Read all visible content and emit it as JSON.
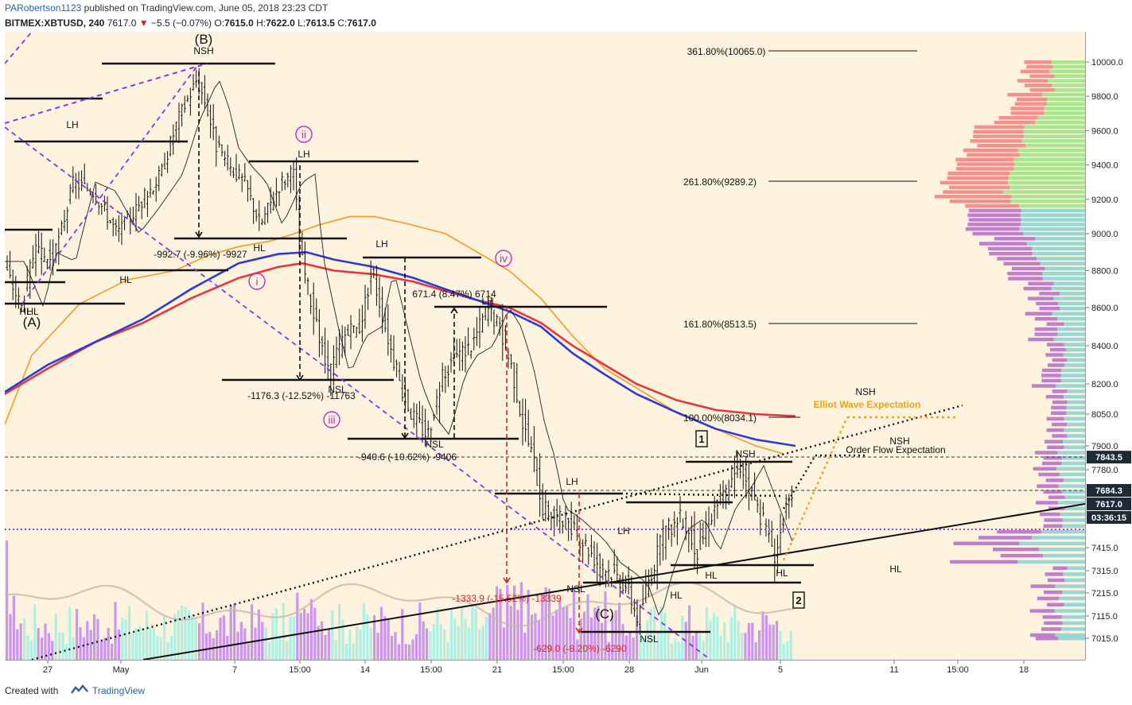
{
  "header": {
    "author": "PARobertson1123",
    "published": "published on TradingView.com, June 05, 2018 23:23 CDT",
    "symbol": "BITMEX:XBTUSD, 240",
    "last": "7617.0",
    "change": "−5.5 (−0.07%)",
    "ohlc": [
      {
        "k": "O:",
        "v": "7615.0"
      },
      {
        "k": "H:",
        "v": "7622.0"
      },
      {
        "k": "L:",
        "v": "7613.5"
      },
      {
        "k": "C:",
        "v": "7617.0"
      }
    ]
  },
  "footer": {
    "created": "Created with",
    "brand": "TradingView"
  },
  "colors": {
    "background": "#fdf3df",
    "volume_up": "#a7efe4",
    "volume_down": "#c48cf0",
    "ma_blue": "#2b3ad8",
    "ma_red": "#e8353a",
    "ma_orange": "#f59a1f",
    "profile_green": "#9ee585",
    "profile_red": "#f77d7d",
    "profile_purple": "#b568c9",
    "profile_teal": "#8fd4d3",
    "label_wave": "#c02cc4",
    "label_red": "#e02020",
    "label_orange": "#f5a010"
  },
  "chart_data": {
    "type": "candlestick",
    "y_axis": {
      "ticks": [
        "10000.0",
        "9800.0",
        "9600.0",
        "9400.0",
        "9200.0",
        "9000.0",
        "8800.0",
        "8600.0",
        "8400.0",
        "8200.0",
        "8050.0",
        "7900.0",
        "7780.0",
        "7415.0",
        "7315.0",
        "7215.0",
        "7115.0",
        "7015.0"
      ],
      "price_tags": [
        {
          "label": "7843.5",
          "value": 7843.5,
          "style": "dark"
        },
        {
          "label": "7684.3",
          "value": 7684.3,
          "style": "dark"
        },
        {
          "label": "7617.0",
          "value": 7617.0,
          "style": "dark"
        },
        {
          "label": "03:36:15",
          "value": 7617.0,
          "style": "timer"
        }
      ]
    },
    "x_axis": {
      "ticks": [
        "27",
        "May",
        "7",
        "15:00",
        "14",
        "15:00",
        "21",
        "15:00",
        "28",
        "Jun",
        "5",
        "11",
        "15:00",
        "18"
      ]
    },
    "fibonacci": [
      {
        "label": "361.80%(10065.0)",
        "value": 10065.0
      },
      {
        "label": "261.80%(9289.2)",
        "value": 9289.2
      },
      {
        "label": "161.80%(8513.5)",
        "value": 8513.5
      },
      {
        "label": "100.00%(8034.1)",
        "value": 8034.1
      }
    ],
    "structure_labels": [
      "NSH",
      "LH",
      "HL",
      "LH",
      "HL",
      "HL",
      "LH",
      "LH",
      "NSL",
      "NSL",
      "LH",
      "LH",
      "HL",
      "NSL",
      "HL",
      "NSL",
      "NSH",
      "HL",
      "HL",
      "NSH",
      "NSH",
      "HL"
    ],
    "wave_labels": [
      "(B)",
      "(A)",
      "(C)",
      "ii",
      "i",
      "iii",
      "iv",
      "1",
      "2"
    ],
    "measurements": [
      "-992.7 (-9.96%) -9927",
      "-1176.3 (-12.52%) -11763",
      "-940.6 (-10.62%) -9406",
      "671.4 (8.47%) 6714",
      "-1333.9 (-15.52%) -13339",
      "-629.0 (-8.20%) -6290"
    ],
    "annotations": [
      "Elliot Wave Expectation",
      "Order Flow Expectation"
    ]
  }
}
